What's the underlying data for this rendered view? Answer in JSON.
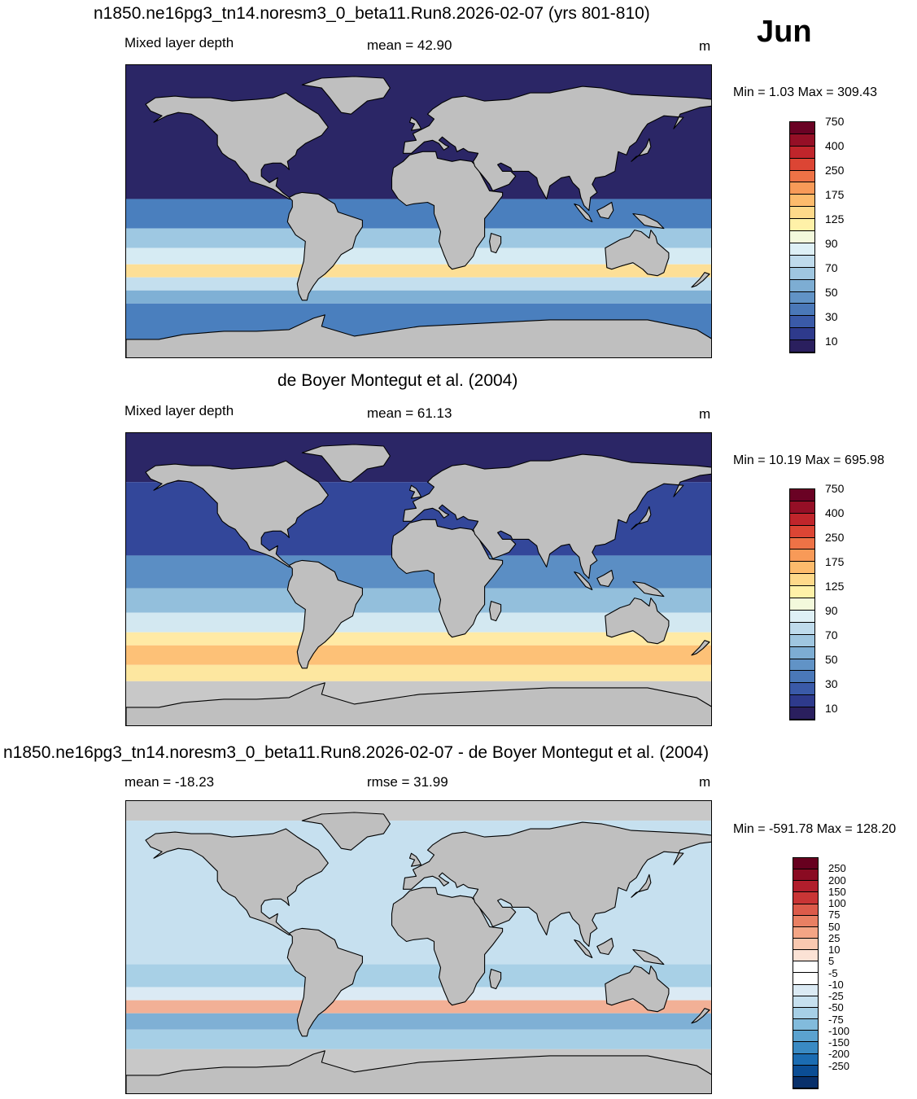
{
  "month": "Jun",
  "panels": [
    {
      "title": "n1850.ne16pg3_tn14.noresm3_0_beta11.Run8.2026-02-07 (yrs 801-810)",
      "left_label": "Mixed layer depth",
      "center_label": "mean =  42.90",
      "units": "m",
      "minmax": "Min =    1.03 Max = 309.43",
      "style": "model",
      "colorbar": "abs"
    },
    {
      "title": "de Boyer Montegut et al. (2004)",
      "left_label": "Mixed layer depth",
      "center_label": "mean =  61.13",
      "units": "m",
      "minmax": "Min =  10.19 Max = 695.98",
      "style": "obs",
      "colorbar": "abs"
    },
    {
      "title": "n1850.ne16pg3_tn14.noresm3_0_beta11.Run8.2026-02-07 - de Boyer Montegut et al. (2004)",
      "left_label": "mean = -18.23",
      "center_label": "rmse =  31.99",
      "units": "m",
      "minmax": "Min = -591.78 Max = 128.20",
      "style": "diff",
      "colorbar": "diff"
    }
  ],
  "colorbars": {
    "abs": {
      "colors": [
        "#2a1f5e",
        "#2e3a8c",
        "#3a5aa8",
        "#4a78b8",
        "#6193c6",
        "#7dadd3",
        "#9fc6e0",
        "#bfdbec",
        "#def0f6",
        "#f3f9dc",
        "#fff1a8",
        "#fed98a",
        "#fdbb6c",
        "#f89a58",
        "#ee7246",
        "#dc4534",
        "#c0252b",
        "#950f26",
        "#6a0224"
      ],
      "labels": [
        "10",
        "30",
        "50",
        "70",
        "90",
        "125",
        "175",
        "250",
        "400",
        "750"
      ]
    },
    "diff": {
      "colors": [
        "#08306b",
        "#0b4d94",
        "#1b6cb2",
        "#3a8ac3",
        "#5ba2cf",
        "#82bbdc",
        "#a6cfe6",
        "#c6e0ef",
        "#dbeaf4",
        "#ffffff",
        "#ffffff",
        "#fbe2d5",
        "#f9c8b0",
        "#f4a585",
        "#e98063",
        "#dc5b4a",
        "#c93535",
        "#b11e2c",
        "#8a0b22",
        "#67001f"
      ],
      "labels": [
        "250",
        "200",
        "150",
        "100",
        "75",
        "50",
        "25",
        "10",
        "5",
        "-5",
        "-10",
        "-25",
        "-50",
        "-75",
        "-100",
        "-150",
        "-200",
        "-250"
      ]
    }
  }
}
